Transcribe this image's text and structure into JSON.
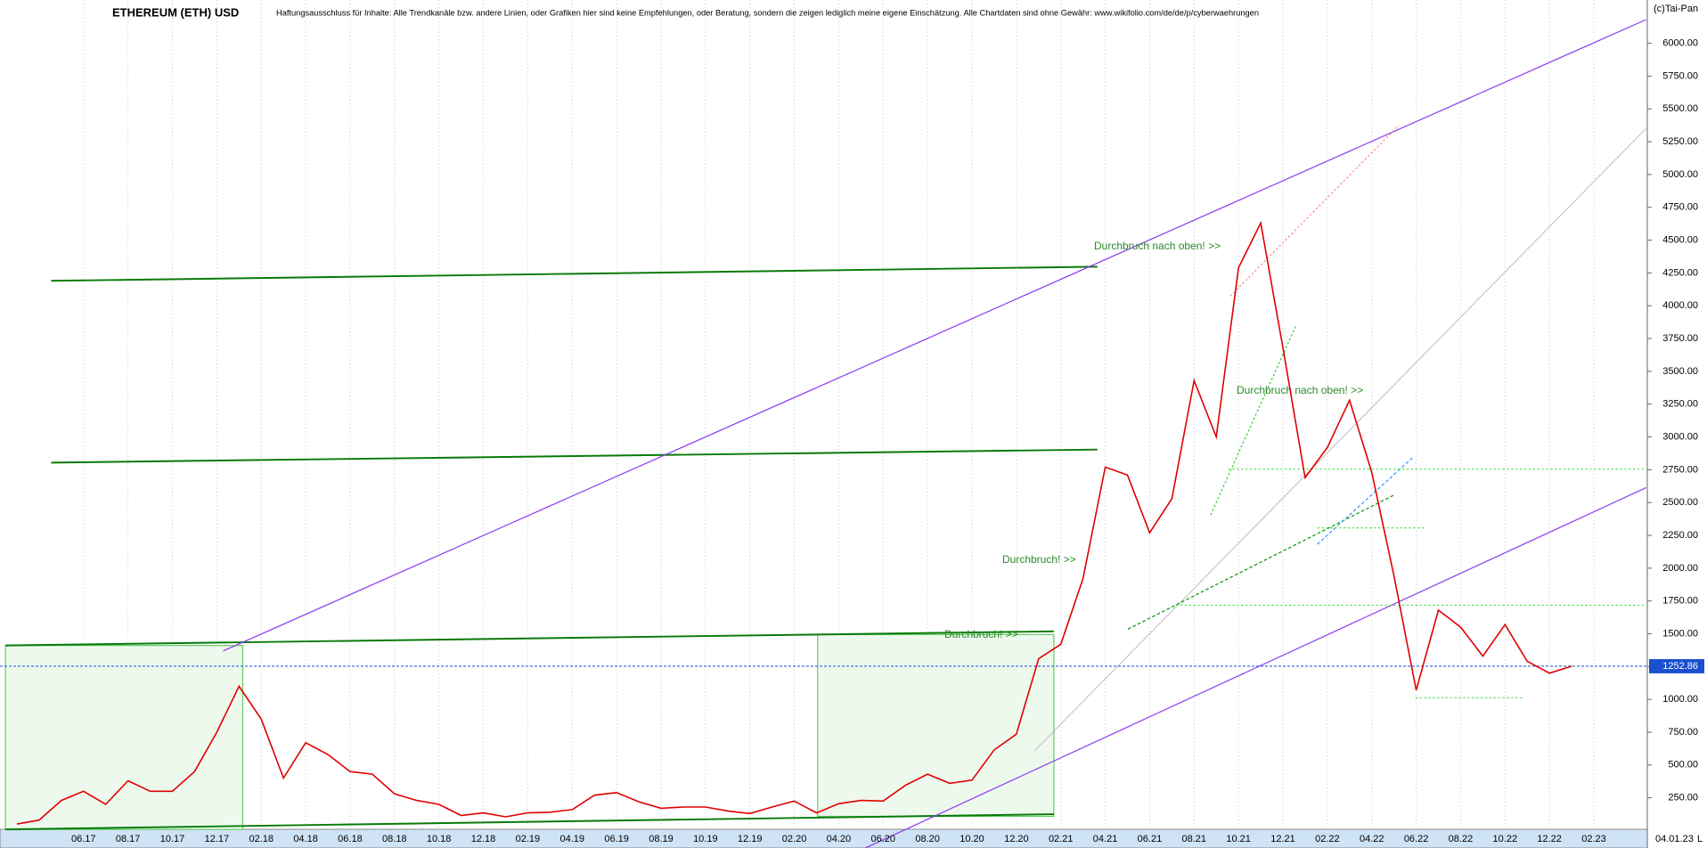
{
  "chart_data": {
    "type": "line",
    "title": "ETHEREUM (ETH) USD",
    "subtitle": "Haftungsausschluss für Inhalte: Alle Trendkanäle bzw. andere Linien, oder Grafiken hier sind keine Empfehlungen, oder Beratung, sondern die zeigen lediglich meine eigene Einschätzung. Alle Chartdaten sind ohne Gewähr: www.wikifolio.com/de/de/p/cyberwaehrungen",
    "copyright": "(c)Tai-Pan",
    "date_label": "04.01.23",
    "status_label": "L",
    "grid": true,
    "categories": [
      null,
      null,
      null,
      "06.17",
      null,
      "08.17",
      null,
      "10.17",
      null,
      "12.17",
      null,
      "02.18",
      null,
      "04.18",
      null,
      "06.18",
      null,
      "08.18",
      null,
      "10.18",
      null,
      "12.18",
      null,
      "02.19",
      null,
      "04.19",
      null,
      "06.19",
      null,
      "08.19",
      null,
      "10.19",
      null,
      "12.19",
      null,
      "02.20",
      null,
      "04.20",
      null,
      "06.20",
      null,
      "08.20",
      null,
      "10.20",
      null,
      "12.20",
      null,
      "02.21",
      null,
      "04.21",
      null,
      "06.21",
      null,
      "08.21",
      null,
      "10.21",
      null,
      "12.21",
      null,
      "02.22",
      null,
      "04.22",
      null,
      "06.22",
      null,
      "08.22",
      null,
      "10.22",
      null,
      "12.22",
      null,
      "02.23"
    ],
    "series": [
      {
        "name": "ETH",
        "color": "#e00000",
        "values": [
          50,
          80,
          230,
          300,
          200,
          380,
          300,
          300,
          450,
          750,
          1100,
          850,
          400,
          670,
          580,
          450,
          430,
          280,
          230,
          200,
          115,
          135,
          105,
          135,
          140,
          160,
          270,
          290,
          220,
          170,
          180,
          180,
          150,
          130,
          180,
          225,
          135,
          205,
          230,
          225,
          345,
          430,
          360,
          385,
          615,
          735,
          1310,
          1420,
          1920,
          2770,
          2710,
          2270,
          2530,
          3430,
          3000,
          4290,
          4630,
          3680,
          2690,
          2920,
          3280,
          2730,
          1940,
          1070,
          1680,
          1550,
          1330,
          1570,
          1290,
          1200,
          1252.86,
          null
        ]
      }
    ],
    "last_price": 1252.86,
    "last_price_color": "#1a4fd0",
    "ylim": [
      10,
      6330
    ],
    "yticks": [
      {
        "value": 250,
        "label": "250.00"
      },
      {
        "value": 500,
        "label": "500.00"
      },
      {
        "value": 750,
        "label": "750.00"
      },
      {
        "value": 1000,
        "label": "1000.00"
      },
      {
        "value": 1250,
        "label": "1250.00"
      },
      {
        "value": 1500,
        "label": "1500.00"
      },
      {
        "value": 1750,
        "label": "1750.00"
      },
      {
        "value": 2000,
        "label": "2000.00"
      },
      {
        "value": 2250,
        "label": "2250.00"
      },
      {
        "value": 2500,
        "label": "2500.00"
      },
      {
        "value": 2750,
        "label": "2750.00"
      },
      {
        "value": 3000,
        "label": "3000.00"
      },
      {
        "value": 3250,
        "label": "3250.00"
      },
      {
        "value": 3500,
        "label": "3500.00"
      },
      {
        "value": 3750,
        "label": "3750.00"
      },
      {
        "value": 4000,
        "label": "4000.00"
      },
      {
        "value": 4250,
        "label": "4250.00"
      },
      {
        "value": 4500,
        "label": "4500.00"
      },
      {
        "value": 4750,
        "label": "4750.00"
      },
      {
        "value": 5000,
        "label": "5000.00"
      },
      {
        "value": 5250,
        "label": "5250.00"
      },
      {
        "value": 5500,
        "label": "5500.00"
      },
      {
        "value": 5750,
        "label": "5750.00"
      },
      {
        "value": 6000,
        "label": "6000.00"
      }
    ],
    "annotations": [
      "Durchbruch nach oben! >>",
      "Durchbruch nach oben! >>",
      "Durchbruch! >>",
      "Durchbruch! >>"
    ]
  }
}
